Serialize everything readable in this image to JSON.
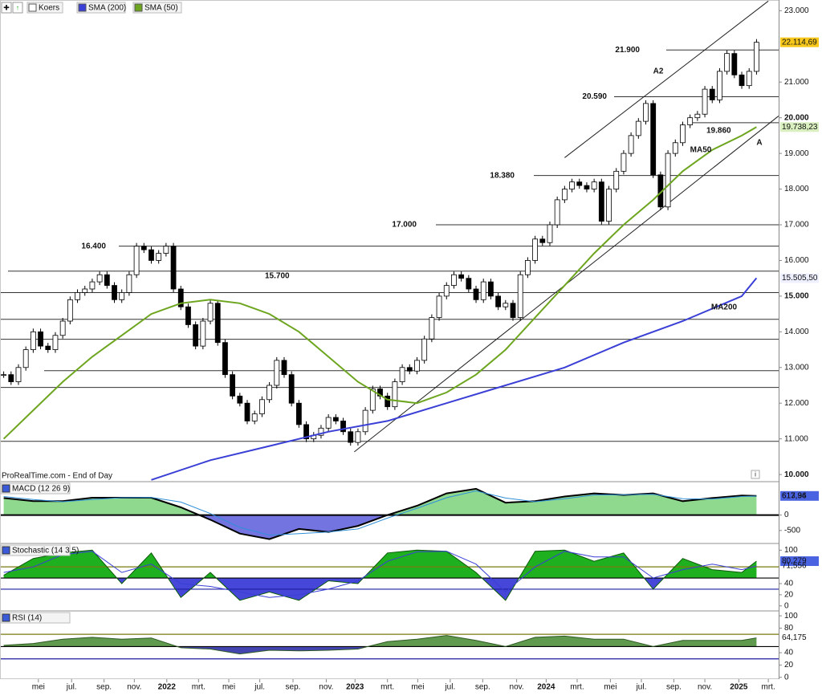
{
  "chart_data": [
    {
      "type": "candlestick",
      "source": "ProRealTime.com - End of Day",
      "xlim": [
        -0.5,
        105
      ],
      "ylim": [
        9800,
        23300
      ],
      "xticks": [
        {
          "value": 4.7,
          "label": "mei"
        },
        {
          "value": 9.2,
          "label": "jul."
        },
        {
          "value": 13.6,
          "label": "sep."
        },
        {
          "value": 17.7,
          "label": "nov."
        },
        {
          "value": 22.1,
          "label": "2022"
        },
        {
          "value": 26.4,
          "label": "mrt."
        },
        {
          "value": 30.5,
          "label": "mei"
        },
        {
          "value": 34.7,
          "label": "jul."
        },
        {
          "value": 39.2,
          "label": "sep."
        },
        {
          "value": 43.7,
          "label": "nov."
        },
        {
          "value": 47.6,
          "label": "2023"
        },
        {
          "value": 52,
          "label": "mrt."
        },
        {
          "value": 56.1,
          "label": "mei"
        },
        {
          "value": 60.5,
          "label": "jul."
        },
        {
          "value": 64.9,
          "label": "sep."
        },
        {
          "value": 69.5,
          "label": "nov."
        },
        {
          "value": 73.5,
          "label": "2024"
        },
        {
          "value": 77.7,
          "label": "mrt."
        },
        {
          "value": 82.2,
          "label": "mei"
        },
        {
          "value": 86.4,
          "label": "jul."
        },
        {
          "value": 90.8,
          "label": "sep."
        },
        {
          "value": 95,
          "label": "nov."
        },
        {
          "value": 99.6,
          "label": "2025"
        },
        {
          "value": 103.6,
          "label": "mrt."
        }
      ],
      "yticks": [
        {
          "value": 23000,
          "label": "23.000"
        },
        {
          "value": 21000,
          "label": "21.000"
        },
        {
          "value": 20000,
          "label": "20.000"
        },
        {
          "value": 19000,
          "label": "19.000"
        },
        {
          "value": 18000,
          "label": "18.000"
        },
        {
          "value": 17000,
          "label": "17.000"
        },
        {
          "value": 16000,
          "label": "16.000"
        },
        {
          "value": 15000,
          "label": "15.000"
        },
        {
          "value": 14000,
          "label": "14.000"
        },
        {
          "value": 13000,
          "label": "13.000"
        },
        {
          "value": 12000,
          "label": "12.000"
        },
        {
          "value": 11000,
          "label": "11.000"
        },
        {
          "value": 10000,
          "label": "10.000"
        }
      ],
      "series": [
        {
          "name": "Koers",
          "color": "#000000",
          "last_label": "22.114,69",
          "label_bg": "#f7c81b",
          "values": [
            12800,
            12600,
            13000,
            13500,
            14000,
            13600,
            13500,
            13900,
            14300,
            14900,
            15100,
            15200,
            15400,
            15600,
            15300,
            14900,
            15100,
            15600,
            16400,
            16300,
            16000,
            16200,
            16400,
            15200,
            14700,
            14200,
            13600,
            14300,
            14800,
            13700,
            12800,
            12200,
            12000,
            11500,
            11700,
            12100,
            12500,
            13200,
            12800,
            12000,
            11400,
            11000,
            11100,
            11300,
            11600,
            11500,
            11200,
            10900,
            11200,
            11800,
            12400,
            12200,
            11900,
            12600,
            13000,
            12900,
            13200,
            13800,
            14400,
            15000,
            15300,
            15600,
            15500,
            15200,
            14900,
            15400,
            15000,
            14700,
            14800,
            14400,
            15600,
            16000,
            16600,
            16500,
            17000,
            17700,
            18000,
            18200,
            18100,
            18000,
            18200,
            17100,
            18000,
            18500,
            19000,
            19500,
            19900,
            20400,
            18400,
            17500,
            19000,
            19300,
            19800,
            20000,
            20100,
            20800,
            20500,
            21300,
            21800,
            21200,
            20900,
            21300,
            22114.69
          ]
        },
        {
          "name": "SMA (200)",
          "color": "#3a3fd6",
          "last_label": "15.505,50",
          "label_bg": "#eef0ff",
          "annotation": "MA200",
          "annotation_color": "#2a2fb0",
          "x": [
            20,
            28,
            36,
            44,
            52,
            60,
            68,
            76,
            84,
            92,
            100,
            102
          ],
          "values": [
            9850,
            10400,
            10800,
            11200,
            11500,
            12000,
            12500,
            13000,
            13700,
            14300,
            15000,
            15505.5
          ]
        },
        {
          "name": "SMA (50)",
          "color": "#6da51f",
          "last_label": "19.738,23",
          "label_bg": "#d9efc0",
          "annotation": "MA50",
          "annotation_color": "#d83a3a",
          "x": [
            0,
            4,
            8,
            12,
            16,
            20,
            24,
            28,
            32,
            36,
            40,
            44,
            48,
            52,
            56,
            60,
            64,
            68,
            72,
            76,
            80,
            84,
            88,
            92,
            96,
            100,
            102
          ],
          "values": [
            11000,
            11800,
            12600,
            13300,
            13900,
            14500,
            14800,
            14900,
            14800,
            14500,
            14000,
            13300,
            12600,
            12100,
            12000,
            12300,
            12800,
            13500,
            14400,
            15300,
            16200,
            17000,
            17700,
            18500,
            19100,
            19500,
            19738.23
          ]
        }
      ],
      "levels": [
        {
          "value": 21900,
          "label": "21.900"
        },
        {
          "value": 20590,
          "label": "20.590"
        },
        {
          "value": 19860,
          "label": "19.860"
        },
        {
          "value": 18380,
          "label": "18.380"
        },
        {
          "value": 17000,
          "label": "17.000"
        },
        {
          "value": 16400,
          "label": "16.400"
        },
        {
          "value": 15700,
          "label": "15.700"
        },
        15100,
        14350,
        13790,
        12910,
        12440,
        10930
      ],
      "trendlines": [
        {
          "label": "A2",
          "points": [
            [
              76,
              18880
            ],
            [
              103.6,
              23270
            ]
          ]
        },
        {
          "label": "A",
          "points": [
            [
              47.5,
              10635
            ],
            [
              105,
              20050
            ]
          ]
        }
      ]
    },
    {
      "type": "macd",
      "title": "MACD (12 26 9)",
      "ylim": [
        -920,
        1080
      ],
      "yticks": [
        0,
        -500
      ],
      "levels": [
        0
      ],
      "level_colors": [
        "#000000"
      ],
      "fill_colors": [
        "#8fd98f",
        "#7474e0"
      ],
      "x": [
        0,
        4,
        8,
        12,
        16,
        20,
        24,
        28,
        32,
        36,
        40,
        44,
        48,
        52,
        56,
        60,
        64,
        68,
        72,
        76,
        80,
        84,
        88,
        92,
        96,
        100,
        102
      ],
      "series": [
        {
          "color": "#000000",
          "last_label": "617,96",
          "label_bg": "#4a63e0",
          "values": [
            550,
            450,
            450,
            560,
            560,
            560,
            250,
            -150,
            -600,
            -780,
            -450,
            -550,
            -350,
            0,
            300,
            700,
            850,
            400,
            450,
            600,
            700,
            650,
            700,
            450,
            550,
            630,
            617.96
          ]
        },
        {
          "color": "#2f8fd8",
          "last_label": "613,34",
          "values": [
            600,
            500,
            430,
            500,
            560,
            570,
            420,
            50,
            -400,
            -650,
            -600,
            -550,
            -450,
            -100,
            220,
            560,
            780,
            550,
            430,
            530,
            650,
            660,
            670,
            530,
            520,
            600,
            613.34
          ]
        }
      ]
    },
    {
      "type": "oscillator",
      "title": "Stochastic (14 3 5)",
      "ylim": [
        -9,
        112
      ],
      "yticks": [
        100,
        40,
        20,
        0
      ],
      "levels": [
        70,
        50,
        30
      ],
      "level_colors": [
        "#7a7a10",
        "#000000",
        "#1c1ca0"
      ],
      "fill_colors": [
        "#1fb01f",
        "#4646d8"
      ],
      "x": [
        0,
        4,
        8,
        12,
        16,
        20,
        24,
        28,
        32,
        36,
        40,
        44,
        48,
        52,
        56,
        60,
        64,
        68,
        72,
        76,
        80,
        84,
        88,
        92,
        96,
        100,
        102
      ],
      "series": [
        {
          "color": "#0a5a0a",
          "last_label": "80,279",
          "label_bg": "#4a63e0",
          "values": [
            55,
            85,
            95,
            100,
            40,
            95,
            15,
            60,
            10,
            25,
            10,
            45,
            40,
            95,
            100,
            98,
            60,
            10,
            98,
            100,
            80,
            95,
            30,
            85,
            65,
            60,
            80.279
          ]
        },
        {
          "color": "#3a3fd6",
          "last_label": "71,556",
          "values": [
            60,
            70,
            92,
            98,
            60,
            75,
            40,
            35,
            25,
            15,
            20,
            30,
            45,
            80,
            97,
            98,
            75,
            25,
            70,
            98,
            88,
            88,
            50,
            65,
            75,
            65,
            71.556
          ]
        }
      ]
    },
    {
      "type": "oscillator",
      "title": "RSI (14)",
      "ylim": [
        -3,
        108
      ],
      "yticks": [
        100,
        80,
        40,
        20,
        0
      ],
      "levels": [
        70,
        50,
        30
      ],
      "level_colors": [
        "#7a7a10",
        "#000000",
        "#1c1ca0"
      ],
      "fill_colors": [
        "#5f9a4e",
        "#4444b0"
      ],
      "x": [
        0,
        4,
        8,
        12,
        16,
        20,
        24,
        28,
        32,
        36,
        40,
        44,
        48,
        52,
        56,
        60,
        64,
        68,
        72,
        76,
        80,
        84,
        88,
        92,
        96,
        100,
        102
      ],
      "series": [
        {
          "color": "#2e5a22",
          "last_label": "64,175",
          "values": [
            52,
            55,
            62,
            65,
            62,
            64,
            48,
            46,
            38,
            44,
            43,
            44,
            46,
            58,
            62,
            68,
            60,
            50,
            65,
            67,
            62,
            62,
            50,
            60,
            60,
            60,
            64.175
          ]
        }
      ]
    }
  ]
}
